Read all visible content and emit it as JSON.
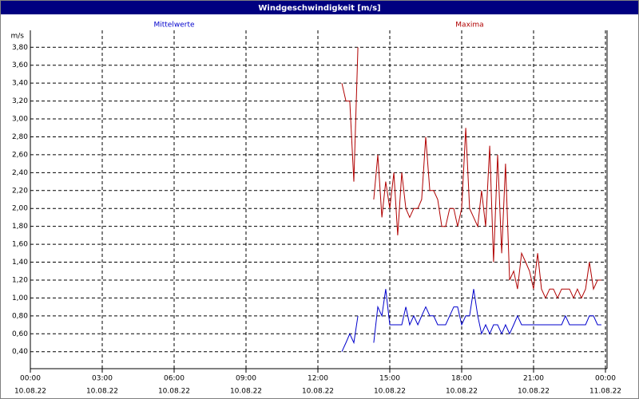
{
  "chart_data": {
    "type": "line",
    "title": "Windgeschwindigkeit [m/s]",
    "y_label": "m/s",
    "x": [
      13,
      13.17,
      13.33,
      13.5,
      13.67,
      13.83,
      14,
      14.17,
      14.33,
      14.5,
      14.67,
      14.83,
      15,
      15.17,
      15.33,
      15.5,
      15.67,
      15.83,
      16,
      16.17,
      16.33,
      16.5,
      16.67,
      16.83,
      17,
      17.17,
      17.33,
      17.5,
      17.67,
      17.83,
      18,
      18.17,
      18.33,
      18.5,
      18.67,
      18.83,
      19,
      19.17,
      19.33,
      19.5,
      19.67,
      19.83,
      20,
      20.17,
      20.33,
      20.5,
      20.67,
      20.83,
      21,
      21.17,
      21.33,
      21.5,
      21.67,
      21.83,
      22,
      22.17,
      22.33,
      22.5,
      22.67,
      22.83,
      23,
      23.17,
      23.33,
      23.5,
      23.67,
      23.83
    ],
    "series": [
      {
        "name": "Mittelwerte",
        "color": "#0000cc",
        "values": [
          0.4,
          0.5,
          0.6,
          0.5,
          0.8,
          null,
          null,
          null,
          0.5,
          0.9,
          0.8,
          1.1,
          0.7,
          0.7,
          0.7,
          0.7,
          0.9,
          0.7,
          0.8,
          0.7,
          0.8,
          0.9,
          0.8,
          0.8,
          0.7,
          0.7,
          0.7,
          0.8,
          0.9,
          0.9,
          0.7,
          0.8,
          0.8,
          1.1,
          0.8,
          0.6,
          0.7,
          0.6,
          0.7,
          0.7,
          0.6,
          0.7,
          0.6,
          0.7,
          0.8,
          0.7,
          0.7,
          0.7,
          0.7,
          0.7,
          0.7,
          0.7,
          0.7,
          0.7,
          0.7,
          0.7,
          0.8,
          0.7,
          0.7,
          0.7,
          0.7,
          0.7,
          0.8,
          0.8,
          0.7,
          0.7
        ]
      },
      {
        "name": "Maxima",
        "color": "#b00000",
        "values": [
          3.4,
          3.2,
          3.2,
          2.3,
          3.8,
          null,
          null,
          null,
          2.1,
          2.6,
          1.9,
          2.3,
          2.0,
          2.4,
          1.7,
          2.4,
          2.0,
          1.9,
          2.0,
          2.0,
          2.1,
          2.8,
          2.2,
          2.2,
          2.1,
          1.8,
          1.8,
          2.0,
          2.0,
          1.8,
          2.0,
          2.9,
          2.0,
          1.9,
          1.8,
          2.2,
          1.8,
          2.7,
          1.4,
          2.6,
          1.5,
          2.5,
          1.2,
          1.3,
          1.1,
          1.5,
          1.4,
          1.3,
          1.1,
          1.5,
          1.1,
          1.0,
          1.1,
          1.1,
          1.0,
          1.1,
          1.1,
          1.1,
          1.0,
          1.1,
          1.0,
          1.1,
          1.4,
          1.1,
          1.2,
          1.2
        ]
      }
    ],
    "xlim": [
      0,
      24
    ],
    "xticks": [
      {
        "value": 0,
        "label": "00:00"
      },
      {
        "value": 3,
        "label": "03:00"
      },
      {
        "value": 6,
        "label": "06:00"
      },
      {
        "value": 9,
        "label": "09:00"
      },
      {
        "value": 12,
        "label": "12:00"
      },
      {
        "value": 15,
        "label": "15:00"
      },
      {
        "value": 18,
        "label": "18:00"
      },
      {
        "value": 21,
        "label": "21:00"
      },
      {
        "value": 24,
        "label": "00:00"
      }
    ],
    "xtick_dates": [
      "10.08.22",
      "10.08.22",
      "10.08.22",
      "10.08.22",
      "10.08.22",
      "10.08.22",
      "10.08.22",
      "10.08.22",
      "11.08.22"
    ],
    "ylim": [
      0.21,
      3.99
    ],
    "yticks": [
      {
        "value": 0.4,
        "label": "0,40"
      },
      {
        "value": 0.6,
        "label": "0,60"
      },
      {
        "value": 0.8,
        "label": "0,80"
      },
      {
        "value": 1.0,
        "label": "1,00"
      },
      {
        "value": 1.2,
        "label": "1,20"
      },
      {
        "value": 1.4,
        "label": "1,40"
      },
      {
        "value": 1.6,
        "label": "1,60"
      },
      {
        "value": 1.8,
        "label": "1,80"
      },
      {
        "value": 2.0,
        "label": "2,00"
      },
      {
        "value": 2.2,
        "label": "2,20"
      },
      {
        "value": 2.4,
        "label": "2,40"
      },
      {
        "value": 2.6,
        "label": "2,60"
      },
      {
        "value": 2.8,
        "label": "2,80"
      },
      {
        "value": 3.0,
        "label": "3,00"
      },
      {
        "value": 3.2,
        "label": "3,20"
      },
      {
        "value": 3.4,
        "label": "3,40"
      },
      {
        "value": 3.6,
        "label": "3,60"
      },
      {
        "value": 3.8,
        "label": "3,80"
      }
    ],
    "grid": true
  }
}
